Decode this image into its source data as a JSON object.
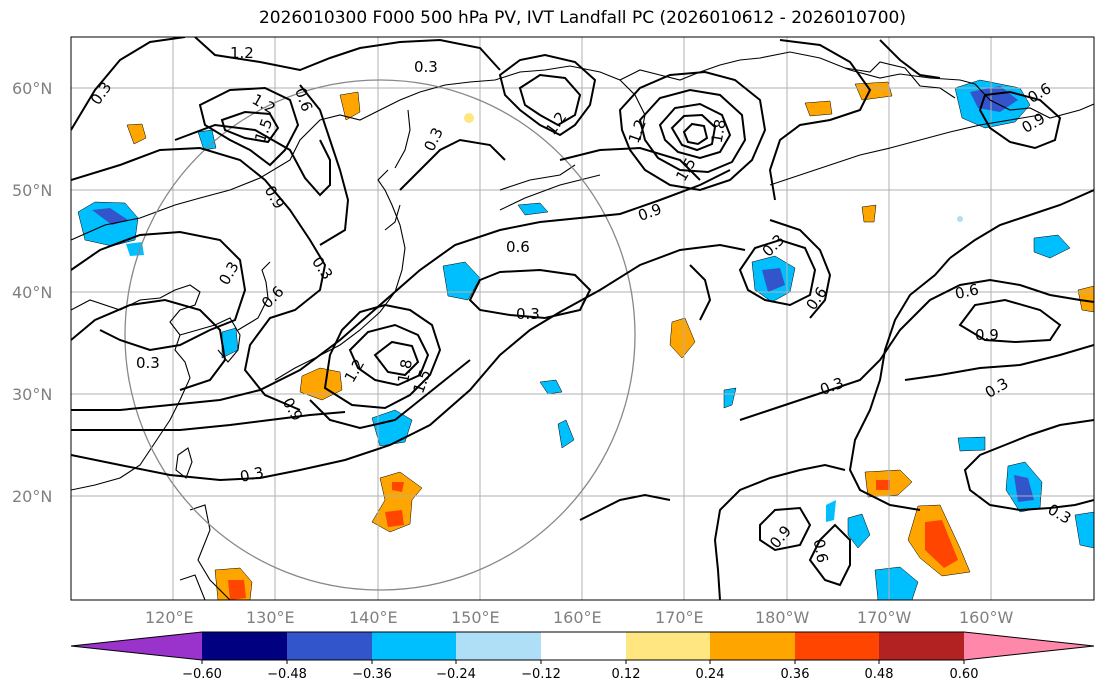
{
  "title": "2026010300 F000 500 hPa PV, IVT Landfall PC (2026010612 - 2026010700)",
  "lat_labels": [
    "60°N",
    "50°N",
    "40°N",
    "30°N",
    "20°N"
  ],
  "lon_labels": [
    "120°E",
    "130°E",
    "140°E",
    "150°E",
    "160°E",
    "170°E",
    "180°W",
    "170°W",
    "160°W"
  ],
  "colorbar": {
    "colors": [
      "#9933cc",
      "#000080",
      "#3355cc",
      "#00bfff",
      "#aedff7",
      "#ffffff",
      "#ffe680",
      "#ffa500",
      "#ff4500",
      "#b22222",
      "#ff88aa"
    ],
    "tick_labels": [
      "−0.60",
      "−0.48",
      "−0.36",
      "−0.24",
      "−0.12",
      "0.12",
      "0.24",
      "0.36",
      "0.48",
      "0.60"
    ]
  },
  "contour_labels": [
    "1.2",
    "0.3",
    "0.3",
    "1.2",
    "0.6",
    "1.5",
    "0.9",
    "0.3",
    "0.3",
    "1.2",
    "1.2",
    "1.8",
    "1.5",
    "0.9",
    "0.6",
    "0.3",
    "0.6",
    "0.3",
    "1.2",
    "1.8",
    "1.5",
    "0.9",
    "0.3",
    "0.3",
    "0.3",
    "0.6",
    "0.6",
    "0.6",
    "0.9",
    "0.3",
    "0.3",
    "0.9",
    "0.9",
    "0.3",
    "0.6"
  ]
}
